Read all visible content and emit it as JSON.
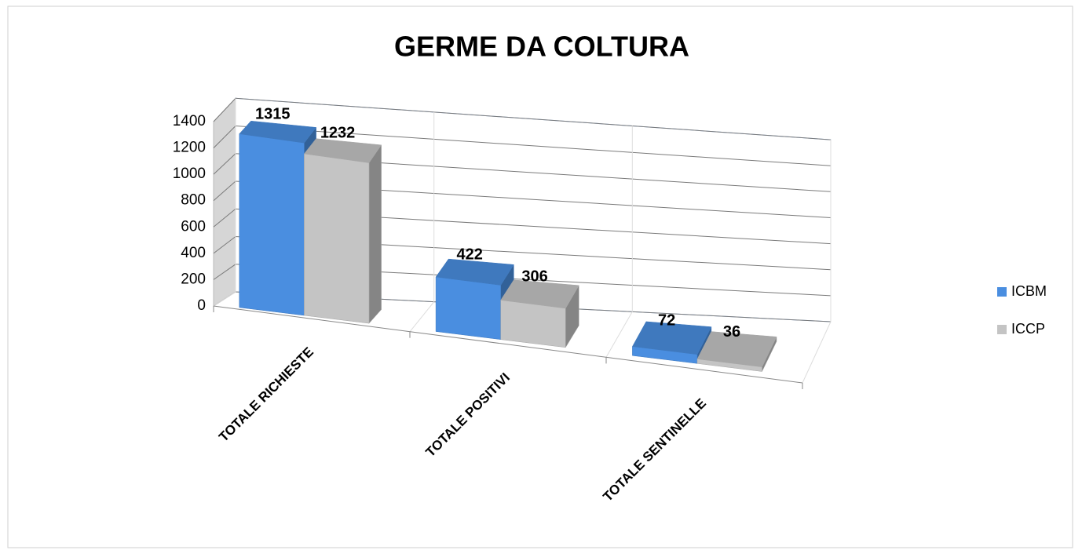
{
  "chart_data": {
    "type": "bar3d",
    "title": "GERME DA COLTURA",
    "categories": [
      "TOTALE RICHIESTE",
      "TOTALE POSITIVI",
      "TOTALE SENTINELLE"
    ],
    "series": [
      {
        "name": "ICBM",
        "color": "#4a8ee0",
        "values": [
          1315,
          422,
          72
        ]
      },
      {
        "name": "ICCP",
        "color": "#c4c4c4",
        "values": [
          1232,
          306,
          36
        ]
      }
    ],
    "ylim": [
      0,
      1400
    ],
    "yticks": [
      0,
      200,
      400,
      600,
      800,
      1000,
      1200,
      1400
    ],
    "grid": true,
    "legend": "right"
  }
}
